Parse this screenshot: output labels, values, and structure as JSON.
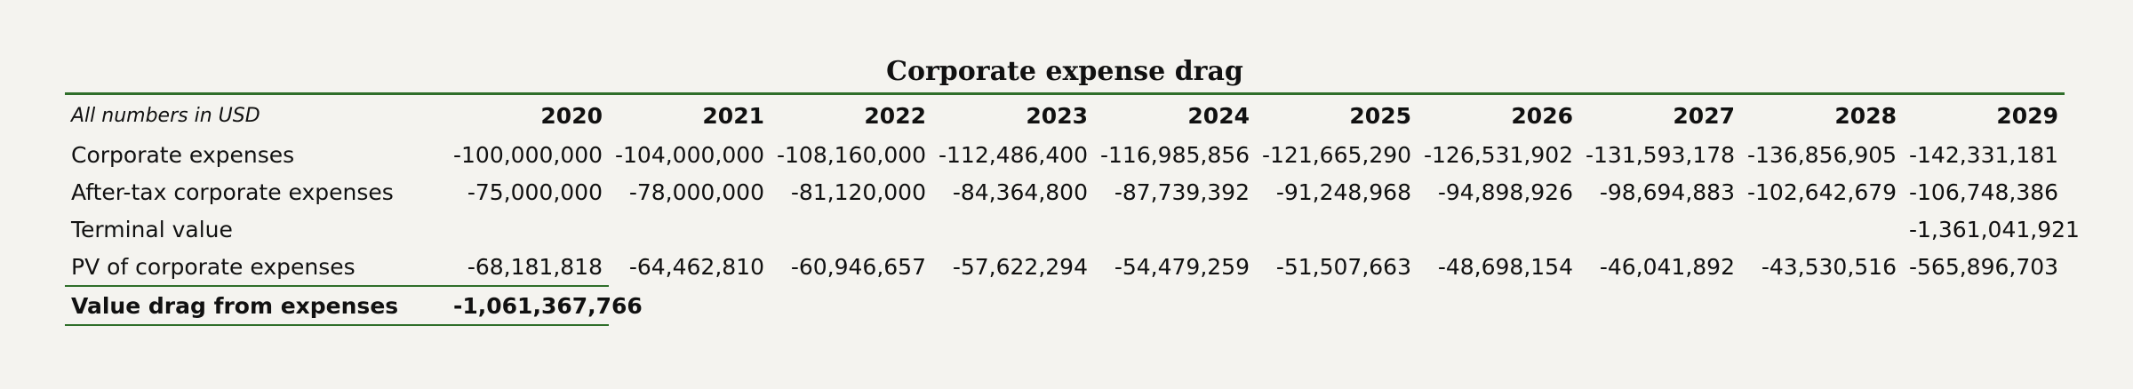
{
  "title": "Corporate expense drag",
  "header": {
    "unit_note": "All numbers in USD",
    "years": [
      "2020",
      "2021",
      "2022",
      "2023",
      "2024",
      "2025",
      "2026",
      "2027",
      "2028",
      "2029"
    ]
  },
  "rows": [
    {
      "label": "Corporate expenses",
      "values": [
        "-100,000,000",
        "-104,000,000",
        "-108,160,000",
        "-112,486,400",
        "-116,985,856",
        "-121,665,290",
        "-126,531,902",
        "-131,593,178",
        "-136,856,905",
        "-142,331,181"
      ]
    },
    {
      "label": "After-tax corporate expenses",
      "values": [
        "-75,000,000",
        "-78,000,000",
        "-81,120,000",
        "-84,364,800",
        "-87,739,392",
        "-91,248,968",
        "-94,898,926",
        "-98,694,883",
        "-102,642,679",
        "-106,748,386"
      ]
    },
    {
      "label": "Terminal value",
      "values": [
        "",
        "",
        "",
        "",
        "",
        "",
        "",
        "",
        "",
        "-1,361,041,921"
      ]
    },
    {
      "label": "PV of corporate expenses",
      "values": [
        "-68,181,818",
        "-64,462,810",
        "-60,946,657",
        "-57,622,294",
        "-54,479,259",
        "-51,507,663",
        "-48,698,154",
        "-46,041,892",
        "-43,530,516",
        "-565,896,703"
      ]
    }
  ],
  "total": {
    "label": "Value drag from expenses",
    "value": "-1,061,367,766"
  }
}
